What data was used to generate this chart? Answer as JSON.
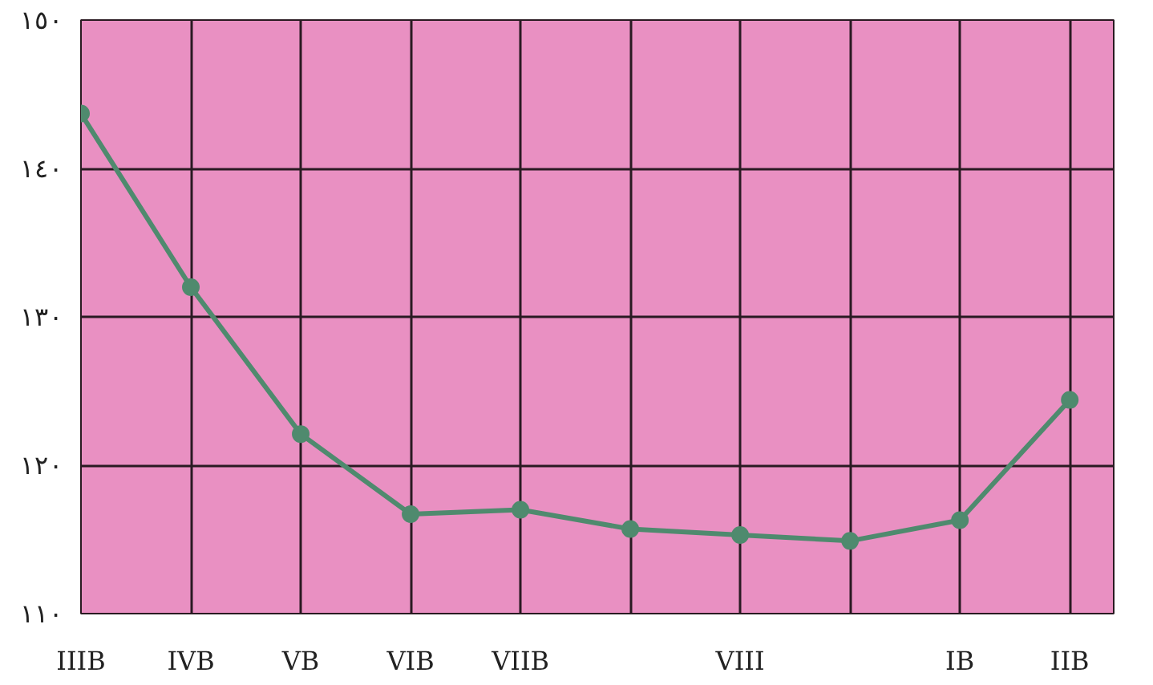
{
  "chart_data": {
    "type": "line",
    "categories": [
      "IIIB",
      "IVB",
      "VB",
      "VIB",
      "VIIB",
      null,
      "VIII",
      null,
      "IB",
      "IIB"
    ],
    "series": [
      {
        "color": "#4f8a6e",
        "values": [
          143.7,
          132,
          122.1,
          116.7,
          117,
          115.7,
          115.3,
          114.9,
          116.3,
          124.4
        ]
      }
    ],
    "ylim": [
      110,
      150
    ],
    "yticks": [
      {
        "value": 110,
        "label": "١١٠"
      },
      {
        "value": 120,
        "label": "١٢٠"
      },
      {
        "value": 130,
        "label": "١٣٠"
      },
      {
        "value": 140,
        "label": "١٤٠"
      },
      {
        "value": 150,
        "label": "١٥٠"
      }
    ],
    "grid": true,
    "marker": "circle",
    "line_style": "solid"
  }
}
